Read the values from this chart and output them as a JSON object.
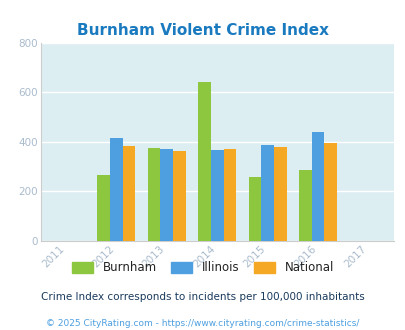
{
  "title": "Burnham Violent Crime Index",
  "years": [
    2011,
    2012,
    2013,
    2014,
    2015,
    2016,
    2017
  ],
  "data_years": [
    2012,
    2013,
    2014,
    2015,
    2016
  ],
  "burnham": [
    265,
    375,
    640,
    258,
    285
  ],
  "illinois": [
    415,
    370,
    368,
    388,
    438
  ],
  "national": [
    385,
    362,
    372,
    380,
    396
  ],
  "colors": {
    "burnham": "#8dc63f",
    "illinois": "#4d9fe0",
    "national": "#f5a823"
  },
  "ylim": [
    0,
    800
  ],
  "yticks": [
    0,
    200,
    400,
    600,
    800
  ],
  "bg_color": "#ddeef2",
  "title_color": "#1a7abf",
  "tick_color": "#aabbcc",
  "subtitle": "Crime Index corresponds to incidents per 100,000 inhabitants",
  "subtitle_color": "#1a3a5c",
  "footer": "© 2025 CityRating.com - https://www.cityrating.com/crime-statistics/",
  "footer_color": "#4d9fe0",
  "bar_width": 0.25
}
